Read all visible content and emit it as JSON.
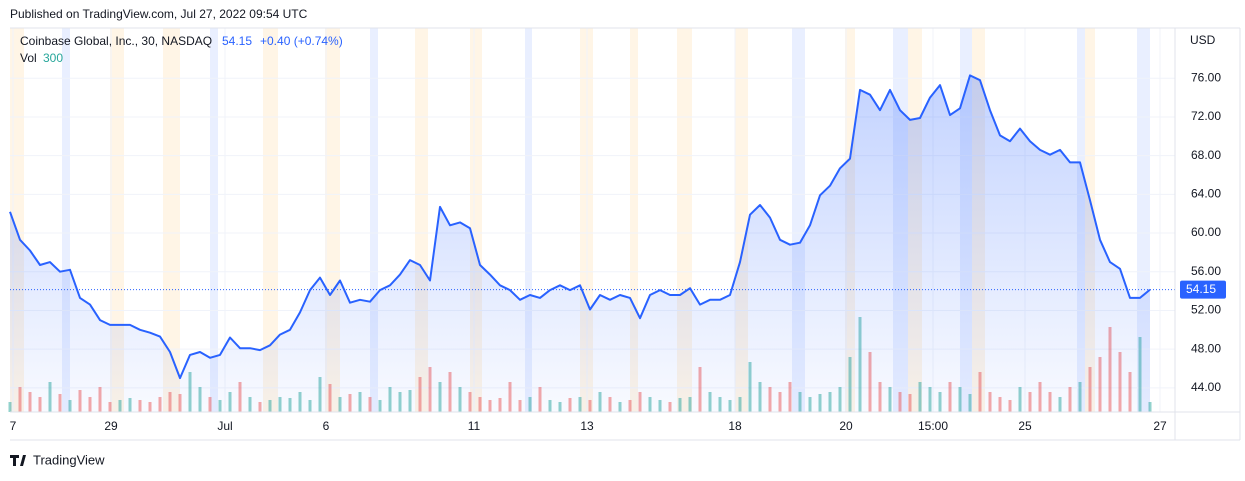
{
  "header": {
    "published": "Published on TradingView.com, Jul 27, 2022 09:54 UTC"
  },
  "chart_data": {
    "type": "line",
    "title": "Coinbase Global, Inc., 30, NASDAQ",
    "change": "+0.40 (+0.74%)",
    "volume_label": "Vol",
    "volume_value": "300",
    "currency": "USD",
    "grid": true,
    "ylim": [
      41.5,
      81.2
    ],
    "yticks": [
      {
        "value": 44,
        "label": "44.00"
      },
      {
        "value": 48,
        "label": "48.00"
      },
      {
        "value": 52,
        "label": "52.00"
      },
      {
        "value": 56,
        "label": "56.00"
      },
      {
        "value": 60,
        "label": "60.00"
      },
      {
        "value": 64,
        "label": "64.00"
      },
      {
        "value": 68,
        "label": "68.00"
      },
      {
        "value": 72,
        "label": "72.00"
      },
      {
        "value": 76,
        "label": "76.00"
      }
    ],
    "xlim": [
      0,
      116
    ],
    "xticks": [
      {
        "value": 0.3,
        "label": "7"
      },
      {
        "value": 10.1,
        "label": "29"
      },
      {
        "value": 21.5,
        "label": "Jul"
      },
      {
        "value": 31.6,
        "label": "6"
      },
      {
        "value": 46.4,
        "label": "11"
      },
      {
        "value": 57.7,
        "label": "13"
      },
      {
        "value": 72.5,
        "label": "18"
      },
      {
        "value": 83.6,
        "label": "20"
      },
      {
        "value": 92.3,
        "label": "15:00"
      },
      {
        "value": 101.5,
        "label": "25"
      },
      {
        "value": 115,
        "label": "27"
      }
    ],
    "series": [
      {
        "name": "Coinbase Global, Inc.",
        "color": "#2962ff",
        "values": [
          62.2,
          59.3,
          58.2,
          56.7,
          57.0,
          56.0,
          56.2,
          53.3,
          52.6,
          51.0,
          50.5,
          50.5,
          50.5,
          50.0,
          49.7,
          49.3,
          47.7,
          45.0,
          47.4,
          47.7,
          47.1,
          47.4,
          49.2,
          48.1,
          48.1,
          47.9,
          48.4,
          49.5,
          50.0,
          51.8,
          54.1,
          55.4,
          53.6,
          55.1,
          52.8,
          53.1,
          52.9,
          54.1,
          54.6,
          55.7,
          57.2,
          56.7,
          55.1,
          62.7,
          60.8,
          61.1,
          60.5,
          56.7,
          55.7,
          54.6,
          54.1,
          53.1,
          53.6,
          53.3,
          54.1,
          54.6,
          54.1,
          54.6,
          52.1,
          53.6,
          53.1,
          53.6,
          53.3,
          51.2,
          53.6,
          54.1,
          53.6,
          53.6,
          54.3,
          52.6,
          53.1,
          53.1,
          53.6,
          57.0,
          61.9,
          62.9,
          61.6,
          59.3,
          58.8,
          59.0,
          60.8,
          63.9,
          64.9,
          66.7,
          67.7,
          74.8,
          74.3,
          72.7,
          74.8,
          72.7,
          71.7,
          71.9,
          74.0,
          75.3,
          72.2,
          72.9,
          76.3,
          75.8,
          72.7,
          70.1,
          69.5,
          70.8,
          69.5,
          68.6,
          68.1,
          68.6,
          67.3,
          67.3,
          63.4,
          59.3,
          57.0,
          56.3,
          53.3,
          53.3,
          54.15
        ]
      }
    ],
    "volume": {
      "up_color": "#26a69a",
      "down_color": "#ef5350",
      "vlim": [
        0,
        100
      ],
      "values": [
        10,
        25,
        20,
        15,
        30,
        18,
        12,
        22,
        15,
        25,
        10,
        12,
        14,
        12,
        10,
        15,
        20,
        18,
        40,
        25,
        15,
        12,
        20,
        30,
        15,
        10,
        12,
        15,
        14,
        20,
        12,
        35,
        28,
        15,
        18,
        20,
        15,
        12,
        25,
        20,
        22,
        35,
        45,
        30,
        40,
        25,
        20,
        15,
        12,
        14,
        30,
        12,
        15,
        25,
        12,
        10,
        14,
        15,
        12,
        20,
        15,
        10,
        12,
        20,
        15,
        12,
        10,
        14,
        15,
        45,
        20,
        15,
        12,
        15,
        50,
        30,
        25,
        20,
        30,
        20,
        15,
        18,
        20,
        25,
        55,
        95,
        60,
        30,
        25,
        20,
        18,
        30,
        25,
        20,
        30,
        25,
        18,
        40,
        20,
        15,
        12,
        25,
        20,
        30,
        20,
        15,
        25,
        30,
        45,
        55,
        85,
        60,
        40,
        75,
        10
      ]
    }
  },
  "footer": {
    "brand": "TradingView"
  }
}
